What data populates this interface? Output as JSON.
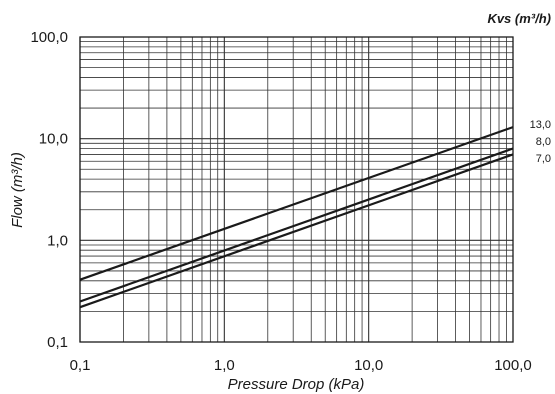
{
  "chart_data": {
    "type": "line",
    "xscale": "log",
    "yscale": "log",
    "xlabel": "Pressure Drop (kPa)",
    "ylabel": "Flow (m³/h)",
    "legend_title": "Kvs (m³/h)",
    "legend_placement": "right of plot, at line ends",
    "xlim": [
      0.1,
      100
    ],
    "ylim": [
      0.1,
      100
    ],
    "xticks": [
      {
        "value": 0.1,
        "label": "0,1"
      },
      {
        "value": 1,
        "label": "1,0"
      },
      {
        "value": 10,
        "label": "10,0"
      },
      {
        "value": 100,
        "label": "100,0"
      }
    ],
    "yticks": [
      {
        "value": 0.1,
        "label": "0,1"
      },
      {
        "value": 1,
        "label": "1,0"
      },
      {
        "value": 10,
        "label": "10,0"
      },
      {
        "value": 100,
        "label": "100,0"
      }
    ],
    "grid": true,
    "series": [
      {
        "name": "13,0",
        "kvs": 13.0,
        "x": [
          0.1,
          100
        ],
        "y": [
          0.41,
          13.0
        ]
      },
      {
        "name": "8,0",
        "kvs": 8.0,
        "x": [
          0.1,
          100
        ],
        "y": [
          0.25,
          8.0
        ]
      },
      {
        "name": "7,0",
        "kvs": 7.0,
        "x": [
          0.1,
          100
        ],
        "y": [
          0.22,
          7.0
        ]
      }
    ],
    "line_color": "#1a1a1a",
    "grid_color": "#333333"
  }
}
